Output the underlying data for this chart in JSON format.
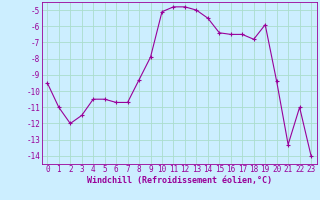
{
  "x": [
    0,
    1,
    2,
    3,
    4,
    5,
    6,
    7,
    8,
    9,
    10,
    11,
    12,
    13,
    14,
    15,
    16,
    17,
    18,
    19,
    20,
    21,
    22,
    23
  ],
  "y": [
    -9.5,
    -11.0,
    -12.0,
    -11.5,
    -10.5,
    -10.5,
    -10.7,
    -10.7,
    -9.3,
    -7.9,
    -5.1,
    -4.8,
    -4.8,
    -5.0,
    -5.5,
    -6.4,
    -6.5,
    -6.5,
    -6.8,
    -5.9,
    -9.4,
    -13.3,
    -11.0,
    -14.0
  ],
  "line_color": "#990099",
  "marker": "+",
  "marker_size": 3,
  "marker_linewidth": 0.8,
  "xlabel": "Windchill (Refroidissement éolien,°C)",
  "xlabel_fontsize": 6,
  "xlim": [
    -0.5,
    23.5
  ],
  "ylim": [
    -14.5,
    -4.5
  ],
  "yticks": [
    -5,
    -6,
    -7,
    -8,
    -9,
    -10,
    -11,
    -12,
    -13,
    -14
  ],
  "xticks": [
    0,
    1,
    2,
    3,
    4,
    5,
    6,
    7,
    8,
    9,
    10,
    11,
    12,
    13,
    14,
    15,
    16,
    17,
    18,
    19,
    20,
    21,
    22,
    23
  ],
  "tick_fontsize": 5.5,
  "background_color": "#cceeff",
  "grid_color": "#aaddcc",
  "line_width": 0.8
}
